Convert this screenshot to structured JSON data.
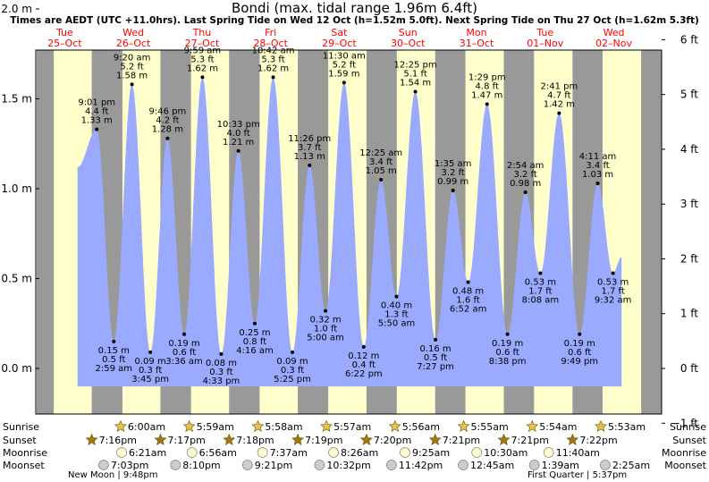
{
  "title": "Bondi (max. tidal range 1.96m 6.4ft)",
  "subtitle": "Times are AEDT (UTC +11.0hrs). Last Spring Tide on Wed 12 Oct (h=1.52m 5.0ft). Next Spring Tide on Thu 27 Oct (h=1.62m 5.3ft)",
  "colors": {
    "day": "#ffffcc",
    "night": "#999999",
    "tide": "#99aaff",
    "day_label": "#ff0000",
    "star": "#a07a10"
  },
  "days": [
    {
      "dow": "Tue",
      "date": "25–Oct"
    },
    {
      "dow": "Wed",
      "date": "26–Oct"
    },
    {
      "dow": "Thu",
      "date": "27–Oct"
    },
    {
      "dow": "Fri",
      "date": "28–Oct"
    },
    {
      "dow": "Sat",
      "date": "29–Oct"
    },
    {
      "dow": "Sun",
      "date": "30–Oct"
    },
    {
      "dow": "Mon",
      "date": "31–Oct"
    },
    {
      "dow": "Tue",
      "date": "01–Nov"
    },
    {
      "dow": "Wed",
      "date": "02–Nov"
    }
  ],
  "chart_data": {
    "type": "area",
    "title": "Bondi (max. tidal range 1.96m 6.4ft)",
    "x_unit": "hours from midnight Tue 25-Oct (AEDT)",
    "x_range": [
      0,
      216
    ],
    "y_left": {
      "unit": "m",
      "range": [
        -0.23,
        2.1
      ],
      "ticks": [
        {
          "v": 0.0,
          "label": "0.0 m"
        },
        {
          "v": 0.5,
          "label": "0.5 m"
        },
        {
          "v": 1.0,
          "label": "1.0 m"
        },
        {
          "v": 1.5,
          "label": "1.5 m"
        },
        {
          "v": 2.0,
          "label": "2.0 m"
        }
      ]
    },
    "y_right": {
      "unit": "ft",
      "ticks": [
        "−1 ft",
        "0 ft",
        "1 ft",
        "2 ft",
        "3 ft",
        "4 ft",
        "5 ft",
        "6 ft"
      ]
    },
    "night_periods": [
      [
        0,
        6.0
      ],
      [
        19.27,
        30.0
      ],
      [
        43.28,
        53.98
      ],
      [
        67.3,
        77.97
      ],
      [
        91.32,
        101.95
      ],
      [
        115.33,
        125.93
      ],
      [
        139.35,
        149.92
      ],
      [
        163.35,
        173.9
      ],
      [
        187.37,
        197.88
      ],
      [
        211.37,
        216
      ]
    ],
    "tides": [
      {
        "t": 21.02,
        "time": "9:01 pm",
        "ft": "4.4 ft",
        "m": "1.33 m",
        "h": 1.33,
        "type": "high"
      },
      {
        "t": 26.98,
        "time": "2:59 am",
        "ft": "0.5 ft",
        "m": "0.15 m",
        "h": 0.15,
        "type": "low"
      },
      {
        "t": 33.33,
        "time": "9:20 am",
        "ft": "5.2 ft",
        "m": "1.58 m",
        "h": 1.58,
        "type": "high"
      },
      {
        "t": 39.75,
        "time": "3:45 pm",
        "ft": "0.3 ft",
        "m": "0.09 m",
        "h": 0.09,
        "type": "low"
      },
      {
        "t": 45.77,
        "time": "9:46 pm",
        "ft": "4.2 ft",
        "m": "1.28 m",
        "h": 1.28,
        "type": "high"
      },
      {
        "t": 51.6,
        "time": "3:36 am",
        "ft": "0.6 ft",
        "m": "0.19 m",
        "h": 0.19,
        "type": "low"
      },
      {
        "t": 57.98,
        "time": "9:59 am",
        "ft": "5.3 ft",
        "m": "1.62 m",
        "h": 1.62,
        "type": "high"
      },
      {
        "t": 64.55,
        "time": "4:33 pm",
        "ft": "0.3 ft",
        "m": "0.08 m",
        "h": 0.08,
        "type": "low"
      },
      {
        "t": 70.55,
        "time": "10:33 pm",
        "ft": "4.0 ft",
        "m": "1.21 m",
        "h": 1.21,
        "type": "high"
      },
      {
        "t": 76.27,
        "time": "4:16 am",
        "ft": "0.8 ft",
        "m": "0.25 m",
        "h": 0.25,
        "type": "low"
      },
      {
        "t": 82.7,
        "time": "10:42 am",
        "ft": "5.3 ft",
        "m": "1.62 m",
        "h": 1.62,
        "type": "high"
      },
      {
        "t": 89.42,
        "time": "5:25 pm",
        "ft": "0.3 ft",
        "m": "0.09 m",
        "h": 0.09,
        "type": "low"
      },
      {
        "t": 95.43,
        "time": "11:26 pm",
        "ft": "3.7 ft",
        "m": "1.13 m",
        "h": 1.13,
        "type": "high"
      },
      {
        "t": 101.0,
        "time": "5:00 am",
        "ft": "1.0 ft",
        "m": "0.32 m",
        "h": 0.32,
        "type": "low"
      },
      {
        "t": 107.5,
        "time": "11:30 am",
        "ft": "5.2 ft",
        "m": "1.59 m",
        "h": 1.59,
        "type": "high"
      },
      {
        "t": 114.37,
        "time": "6:22 pm",
        "ft": "0.4 ft",
        "m": "0.12 m",
        "h": 0.12,
        "type": "low"
      },
      {
        "t": 120.42,
        "time": "12:25 am",
        "ft": "3.4 ft",
        "m": "1.05 m",
        "h": 1.05,
        "type": "high"
      },
      {
        "t": 125.83,
        "time": "5:50 am",
        "ft": "1.3 ft",
        "m": "0.40 m",
        "h": 0.4,
        "type": "low"
      },
      {
        "t": 132.42,
        "time": "12:25 pm",
        "ft": "5.1 ft",
        "m": "1.54 m",
        "h": 1.54,
        "type": "high"
      },
      {
        "t": 139.45,
        "time": "7:27 pm",
        "ft": "0.5 ft",
        "m": "0.16 m",
        "h": 0.16,
        "type": "low"
      },
      {
        "t": 145.58,
        "time": "1:35 am",
        "ft": "3.2 ft",
        "m": "0.99 m",
        "h": 0.99,
        "type": "high"
      },
      {
        "t": 150.87,
        "time": "6:52 am",
        "ft": "1.6 ft",
        "m": "0.48 m",
        "h": 0.48,
        "type": "low"
      },
      {
        "t": 157.48,
        "time": "1:29 pm",
        "ft": "4.8 ft",
        "m": "1.47 m",
        "h": 1.47,
        "type": "high"
      },
      {
        "t": 164.63,
        "time": "8:38 pm",
        "ft": "0.6 ft",
        "m": "0.19 m",
        "h": 0.19,
        "type": "low"
      },
      {
        "t": 170.9,
        "time": "2:54 am",
        "ft": "3.2 ft",
        "m": "0.98 m",
        "h": 0.98,
        "type": "high"
      },
      {
        "t": 176.13,
        "time": "8:08 am",
        "ft": "1.7 ft",
        "m": "0.53 m",
        "h": 0.53,
        "type": "low"
      },
      {
        "t": 182.68,
        "time": "2:41 pm",
        "ft": "4.7 ft",
        "m": "1.42 m",
        "h": 1.42,
        "type": "high"
      },
      {
        "t": 189.82,
        "time": "9:49 pm",
        "ft": "0.6 ft",
        "m": "0.19 m",
        "h": 0.19,
        "type": "low"
      },
      {
        "t": 196.18,
        "time": "4:11 am",
        "ft": "3.4 ft",
        "m": "1.03 m",
        "h": 1.03,
        "type": "high"
      },
      {
        "t": 201.53,
        "time": "9:32 am",
        "ft": "1.7 ft",
        "m": "0.53 m",
        "h": 0.53,
        "type": "low"
      }
    ],
    "tide_start": {
      "t": 14.3,
      "h": 1.12
    },
    "tide_end": {
      "t": 204.5,
      "h": 0.62
    }
  },
  "rows": {
    "labels": [
      "Sunrise",
      "Sunset",
      "Moonrise",
      "Moonset"
    ],
    "sunrise": [
      {
        "t": 30.0,
        "time": "6:00am"
      },
      {
        "t": 53.98,
        "time": "5:59am"
      },
      {
        "t": 77.97,
        "time": "5:58am"
      },
      {
        "t": 101.95,
        "time": "5:57am"
      },
      {
        "t": 125.93,
        "time": "5:56am"
      },
      {
        "t": 149.92,
        "time": "5:55am"
      },
      {
        "t": 173.9,
        "time": "5:54am"
      },
      {
        "t": 197.88,
        "time": "5:53am"
      }
    ],
    "sunset": [
      {
        "t": 19.27,
        "time": "7:16pm"
      },
      {
        "t": 43.28,
        "time": "7:17pm"
      },
      {
        "t": 67.3,
        "time": "7:18pm"
      },
      {
        "t": 91.32,
        "time": "7:19pm"
      },
      {
        "t": 115.33,
        "time": "7:20pm"
      },
      {
        "t": 139.35,
        "time": "7:21pm"
      },
      {
        "t": 163.35,
        "time": "7:21pm"
      },
      {
        "t": 187.37,
        "time": "7:22pm"
      }
    ],
    "moonrise": [
      {
        "t": 30.35,
        "time": "6:21am"
      },
      {
        "t": 54.93,
        "time": "6:56am"
      },
      {
        "t": 79.62,
        "time": "7:37am"
      },
      {
        "t": 104.43,
        "time": "8:26am"
      },
      {
        "t": 129.42,
        "time": "9:25am"
      },
      {
        "t": 154.5,
        "time": "10:30am"
      },
      {
        "t": 179.67,
        "time": "11:40am"
      }
    ],
    "moonset": [
      {
        "t": 19.05,
        "time": "7:03pm"
      },
      {
        "t": 44.17,
        "time": "8:10pm"
      },
      {
        "t": 69.35,
        "time": "9:21pm"
      },
      {
        "t": 94.53,
        "time": "10:32pm"
      },
      {
        "t": 119.7,
        "time": "11:42pm"
      },
      {
        "t": 144.75,
        "time": "12:45am"
      },
      {
        "t": 169.65,
        "time": "1:39am"
      },
      {
        "t": 194.42,
        "time": "2:25am"
      }
    ]
  },
  "moon_phases": [
    {
      "label": "New Moon | 9:48pm"
    },
    {
      "label": "First Quarter | 5:37pm"
    }
  ]
}
